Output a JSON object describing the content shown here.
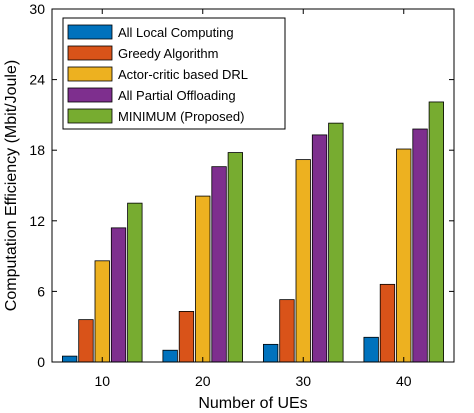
{
  "chart_data": {
    "type": "bar",
    "title": "",
    "xlabel": "Number of UEs",
    "ylabel": "Computation Efficiency (Mbit/Joule)",
    "categories": [
      "10",
      "20",
      "30",
      "40"
    ],
    "ylim": [
      0,
      30
    ],
    "yticks": [
      0,
      6,
      12,
      18,
      24,
      30
    ],
    "grid": false,
    "legend_position": "top-left",
    "series": [
      {
        "name": "All Local Computing",
        "color": "#0072BD",
        "values": [
          0.5,
          1.0,
          1.5,
          2.1
        ]
      },
      {
        "name": "Greedy Algorithm",
        "color": "#D95319",
        "values": [
          3.6,
          4.3,
          5.3,
          6.6
        ]
      },
      {
        "name": "Actor-critic based DRL",
        "color": "#EDB120",
        "values": [
          8.6,
          14.1,
          17.2,
          18.1
        ]
      },
      {
        "name": "All Partial Offloading",
        "color": "#7E2F8E",
        "values": [
          11.4,
          16.6,
          19.3,
          19.8
        ]
      },
      {
        "name": "MINIMUM (Proposed)",
        "color": "#77AC30",
        "values": [
          13.5,
          17.8,
          20.3,
          22.1
        ]
      }
    ]
  }
}
